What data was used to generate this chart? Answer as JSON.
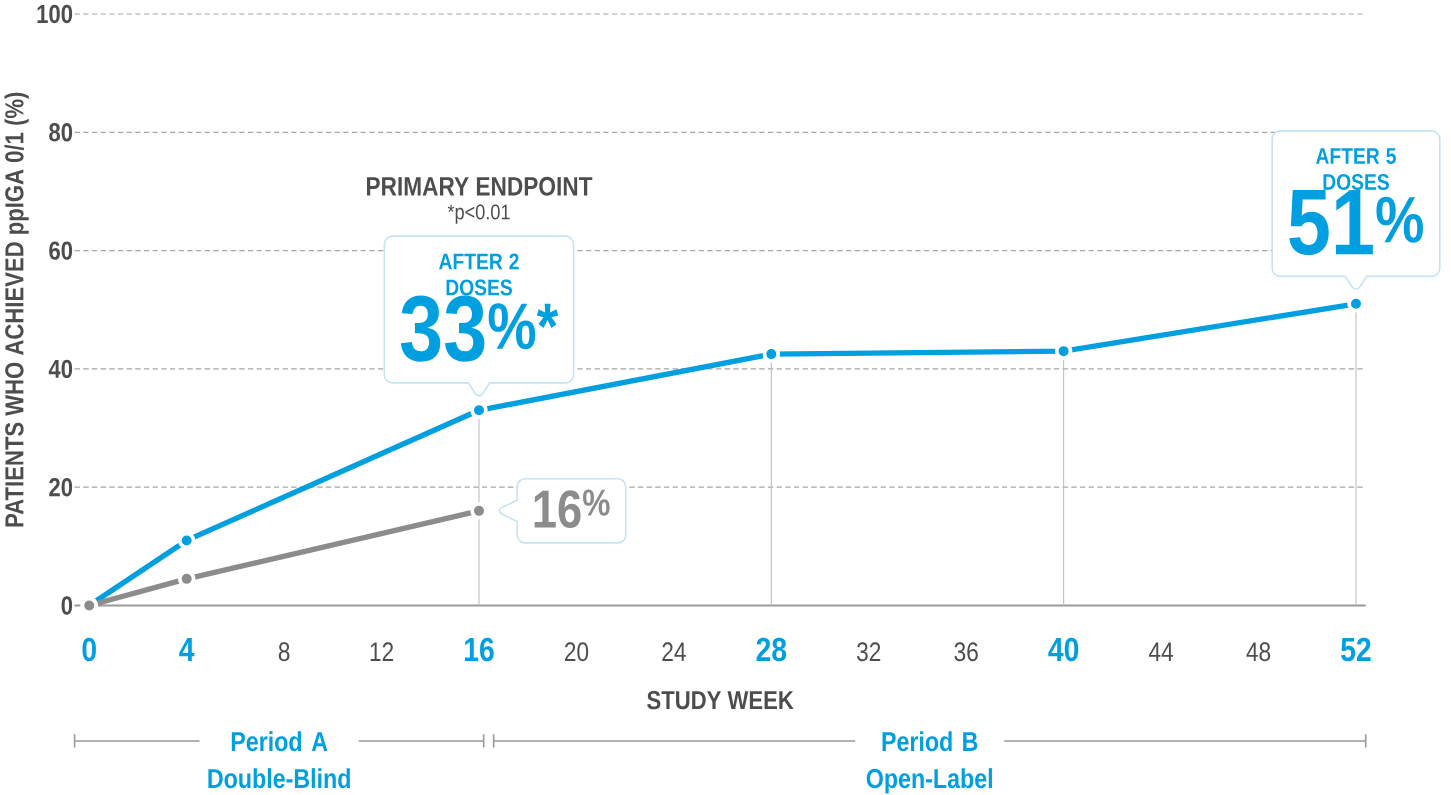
{
  "chart_data": {
    "type": "line",
    "xlabel": "STUDY WEEK",
    "ylabel": "PATIENTS WHO ACHIEVED ppIGA 0/1 (%)",
    "xlim": [
      -0.6,
      52.4
    ],
    "xticks": [
      0,
      4,
      8,
      12,
      16,
      20,
      24,
      28,
      32,
      36,
      40,
      44,
      48,
      52
    ],
    "ylim": [
      0,
      100
    ],
    "yticks": [
      0,
      20,
      40,
      60,
      80,
      100
    ],
    "grid": "y",
    "marker": "circle",
    "line_style": "solid",
    "series": [
      {
        "color": "#009fdf",
        "x": [
          0,
          4,
          16,
          28,
          40,
          52
        ],
        "values": [
          0,
          11,
          33,
          42.5,
          43,
          51
        ],
        "value_labels": [
          null,
          null,
          "33$^{%*}$",
          null,
          null,
          "51$^{%}$"
        ]
      },
      {
        "color": "#8c8c8c",
        "x": [
          0,
          4,
          16
        ],
        "values": [
          0,
          4.5,
          16
        ],
        "value_labels": [
          null,
          null,
          "16$^{%}$"
        ]
      }
    ],
    "annotations": [
      "PRIMARY ENDPOINT",
      "*p<0.01",
      "AFTER 2 DOSES",
      "AFTER 5 DOSES",
      "Period A Double-Blind",
      "Period B Open-Label"
    ],
    "ref_lines": [
      {
        "axis": "x",
        "value": 16,
        "color": "#bdbdbd"
      },
      {
        "axis": "x",
        "value": 28,
        "color": "#bdbdbd"
      },
      {
        "axis": "x",
        "value": 40,
        "color": "#bdbdbd"
      },
      {
        "axis": "x",
        "value": 52,
        "color": "#bdbdbd"
      }
    ]
  }
}
